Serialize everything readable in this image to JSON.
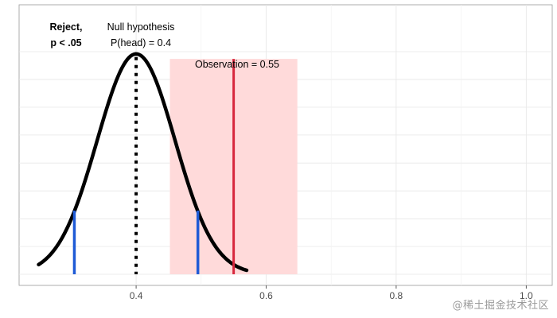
{
  "chart_data": {
    "type": "line",
    "description_free": true,
    "xlim": [
      0.22,
      1.04
    ],
    "ylim": [
      0,
      1.0
    ],
    "x_ticks": [
      0.4,
      0.6,
      0.8,
      1.0
    ],
    "x_tick_labels": [
      "0.4",
      "0.6",
      "0.8",
      "1.0"
    ],
    "y_gridlines": [
      0.111,
      0.222,
      0.333,
      0.444,
      0.556,
      0.667,
      0.778,
      0.889
    ],
    "grid": true,
    "series": [
      {
        "curve": "normal",
        "mean": 0.4,
        "sd": 0.06,
        "x_range": [
          0.25,
          0.57
        ],
        "peak": 0.88,
        "color": "#000000"
      }
    ],
    "mean_line": {
      "x": 0.4,
      "color": "#000000",
      "style": "dotted"
    },
    "critical_lines": {
      "x": [
        0.305,
        0.495
      ],
      "color": "#1f5bd6"
    },
    "observation": {
      "x": 0.55,
      "color": "#d7263d"
    },
    "shaded_region": {
      "x": [
        0.452,
        0.648
      ],
      "y_top": 0.86,
      "color": "#ffdada"
    },
    "annotations": {
      "reject_line1": "Reject,",
      "reject_line2": "p < .05",
      "null_line1": "Null hypothesis",
      "null_line2": "P(head) = 0.4",
      "observation_label": "Observation = 0.55"
    }
  },
  "watermark": "@稀土掘金技术社区"
}
